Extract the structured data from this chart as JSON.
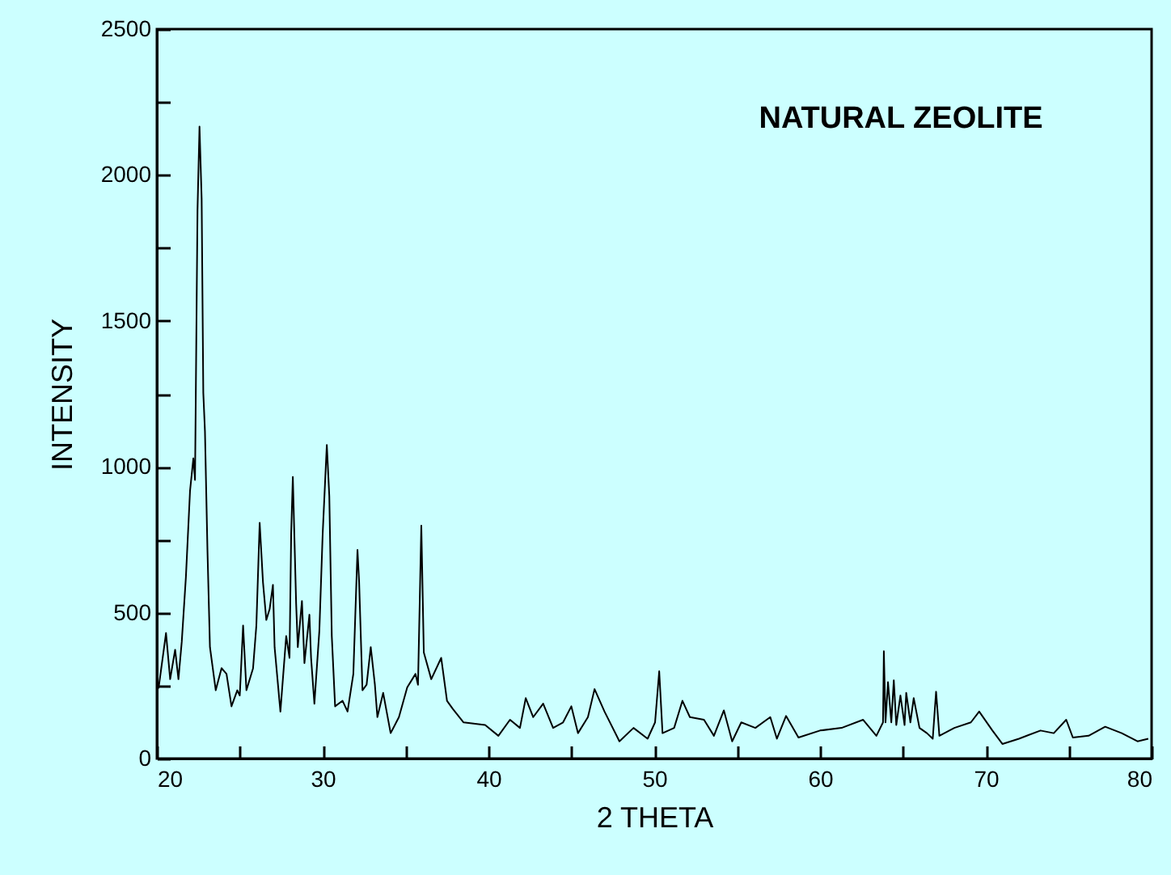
{
  "chart_data": {
    "type": "line",
    "xlabel": "2 THETA",
    "ylabel": "INTENSITY",
    "annotations": [
      "NATURAL ZEOLITE"
    ],
    "xlim": [
      20,
      80
    ],
    "xticks": [
      20,
      {
        "value": 25,
        "label": null
      },
      30,
      {
        "value": 35,
        "label": null
      },
      40,
      {
        "value": 45,
        "label": null
      },
      50,
      {
        "value": 55,
        "label": null
      },
      60,
      {
        "value": 65,
        "label": null
      },
      70,
      {
        "value": 75,
        "label": null
      },
      80
    ],
    "ylim": [
      0,
      2500
    ],
    "yticks": [
      0,
      {
        "value": 250,
        "label": null
      },
      500,
      {
        "value": 750,
        "label": null
      },
      1000,
      {
        "value": 1250,
        "label": null
      },
      1500,
      {
        "value": 1750,
        "label": null
      },
      2000,
      {
        "value": 2250,
        "label": null
      },
      2500
    ],
    "grid": false,
    "x": [
      20.1,
      20.55,
      20.8,
      21.1,
      21.3,
      21.5,
      21.75,
      22.0,
      22.2,
      22.3,
      22.45,
      22.57,
      22.7,
      22.8,
      22.9,
      23.05,
      23.2,
      23.55,
      23.9,
      24.2,
      24.5,
      24.85,
      25.0,
      25.2,
      25.4,
      25.8,
      26.0,
      26.2,
      26.4,
      26.6,
      26.8,
      27.0,
      27.1,
      27.45,
      27.8,
      28.0,
      28.1,
      28.2,
      28.4,
      28.5,
      28.75,
      28.9,
      29.2,
      29.3,
      29.5,
      29.8,
      30.0,
      30.25,
      30.4,
      30.55,
      30.75,
      31.2,
      31.5,
      31.85,
      32.1,
      32.2,
      32.4,
      32.65,
      32.9,
      33.15,
      33.3,
      33.65,
      34.1,
      34.6,
      35.1,
      35.6,
      35.75,
      35.95,
      36.1,
      36.55,
      37.15,
      37.5,
      37.85,
      38.5,
      39.8,
      40.6,
      41.3,
      41.9,
      42.25,
      42.7,
      43.3,
      43.9,
      44.5,
      45.0,
      45.4,
      46.0,
      46.4,
      47.0,
      47.9,
      48.75,
      49.6,
      50.05,
      50.3,
      50.5,
      51.2,
      51.7,
      52.15,
      53.0,
      53.6,
      54.2,
      54.7,
      55.25,
      56.1,
      57.0,
      57.4,
      57.95,
      58.7,
      60.0,
      61.3,
      62.6,
      63.4,
      63.8,
      63.85,
      63.95,
      64.1,
      64.3,
      64.45,
      64.6,
      64.85,
      65.1,
      65.2,
      65.45,
      65.65,
      66.0,
      66.45,
      66.8,
      67.0,
      67.2,
      68.1,
      69.1,
      69.6,
      70.4,
      71.0,
      72.0,
      73.3,
      74.1,
      74.85,
      75.25,
      76.2,
      77.2,
      78.2,
      79.15,
      79.8
    ],
    "series": [
      {
        "color": "#000000",
        "values": [
          240,
          430,
          272,
          373,
          272,
          400,
          622,
          918,
          1029,
          955,
          1879,
          2166,
          1918,
          1253,
          1121,
          715,
          382,
          234,
          310,
          290,
          179,
          234,
          216,
          456,
          234,
          309,
          456,
          808,
          604,
          475,
          512,
          595,
          382,
          161,
          420,
          345,
          770,
          965,
          530,
          382,
          540,
          327,
          493,
          345,
          188,
          438,
          770,
          1075,
          900,
          420,
          179,
          198,
          161,
          290,
          715,
          604,
          234,
          253,
          382,
          253,
          142,
          225,
          87,
          142,
          244,
          290,
          253,
          798,
          364,
          272,
          345,
          198,
          170,
          124,
          115,
          78,
          133,
          105,
          207,
          142,
          188,
          105,
          124,
          179,
          87,
          142,
          238,
          161,
          59,
          105,
          68,
          124,
          299,
          87,
          105,
          198,
          142,
          133,
          78,
          165,
          59,
          124,
          105,
          142,
          68,
          146,
          72,
          96,
          105,
          133,
          78,
          124,
          368,
          124,
          262,
          124,
          268,
          115,
          216,
          115,
          225,
          124,
          207,
          105,
          87,
          68,
          229,
          78,
          105,
          124,
          161,
          96,
          50,
          68,
          96,
          87,
          133,
          72,
          78,
          109,
          87,
          59,
          68
        ]
      }
    ]
  }
}
